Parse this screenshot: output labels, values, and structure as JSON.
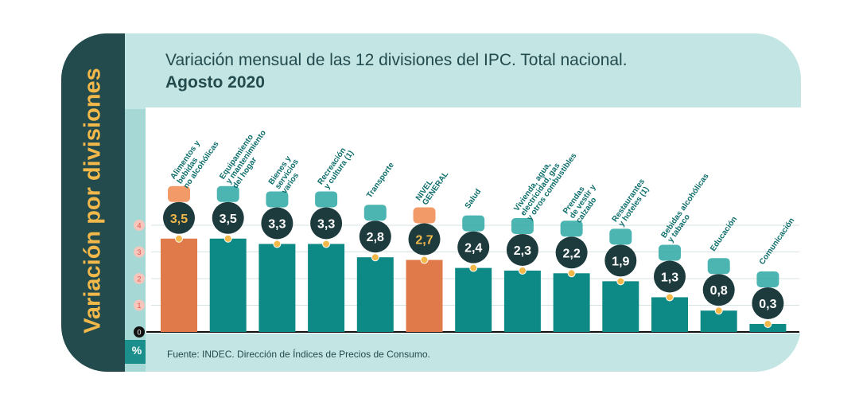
{
  "title_line1": "Variación mensual de las 12 divisiones del IPC. Total nacional.",
  "title_line2": "Agosto 2020",
  "side_label": "Variación por divisiones",
  "unit_label": "%",
  "source": "Fuente: INDEC. Dirección de Índices de Precios de Consumo.",
  "colors": {
    "bar": "#0e8a86",
    "highlight": "#e07a4a",
    "frame": "#234a4d",
    "accent": "#f2b94a"
  },
  "chart_data": {
    "type": "bar",
    "categories": [
      [
        "Alimentos y",
        "bebidas",
        "no alcohólicas"
      ],
      [
        "Equipamiento",
        "y mantenimiento",
        "del hogar"
      ],
      [
        "Bienes y",
        "servicios",
        "varios"
      ],
      [
        "Recreación",
        "y cultura (1)"
      ],
      [
        "Transporte"
      ],
      [
        "NIVEL",
        "GENERAL"
      ],
      [
        "Salud"
      ],
      [
        "Vivienda, agua,",
        "electricidad, gas",
        "y otros combustibles"
      ],
      [
        "Prendas",
        "de vestir y",
        "calzado"
      ],
      [
        "Restaurantes",
        "y hoteles (1)"
      ],
      [
        "Bebidas alcohólicas",
        "y tabaco"
      ],
      [
        "Educación"
      ],
      [
        "Comunicación"
      ]
    ],
    "values": [
      3.5,
      3.5,
      3.3,
      3.3,
      2.8,
      2.7,
      2.4,
      2.3,
      2.2,
      1.9,
      1.3,
      0.8,
      0.3
    ],
    "value_labels": [
      "3,5",
      "3,5",
      "3,3",
      "3,3",
      "2,8",
      "2,7",
      "2,4",
      "2,3",
      "2,2",
      "1,9",
      "1,3",
      "0,8",
      "0,3"
    ],
    "highlight": [
      0,
      5
    ],
    "yticks": [
      "0",
      "1",
      "2",
      "3",
      "4"
    ],
    "ylim": [
      0,
      4
    ]
  }
}
